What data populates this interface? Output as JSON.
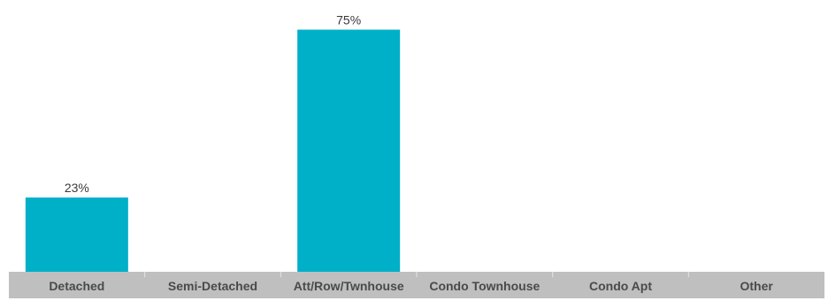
{
  "chart_data": {
    "type": "bar",
    "categories": [
      "Detached",
      "Semi-Detached",
      "Att/Row/Twnhouse",
      "Condo Townhouse",
      "Condo Apt",
      "Other"
    ],
    "values": [
      23,
      0,
      75,
      0,
      0,
      0
    ],
    "value_labels": [
      "23%",
      "",
      "75%",
      "",
      "",
      ""
    ],
    "ylim": [
      0,
      82
    ],
    "grid": false,
    "colors": {
      "bar": "#00AFC8",
      "axis_band": "#BFBFBF",
      "category_text": "#4A4A4A",
      "value_text": "#3A3A3A"
    }
  }
}
